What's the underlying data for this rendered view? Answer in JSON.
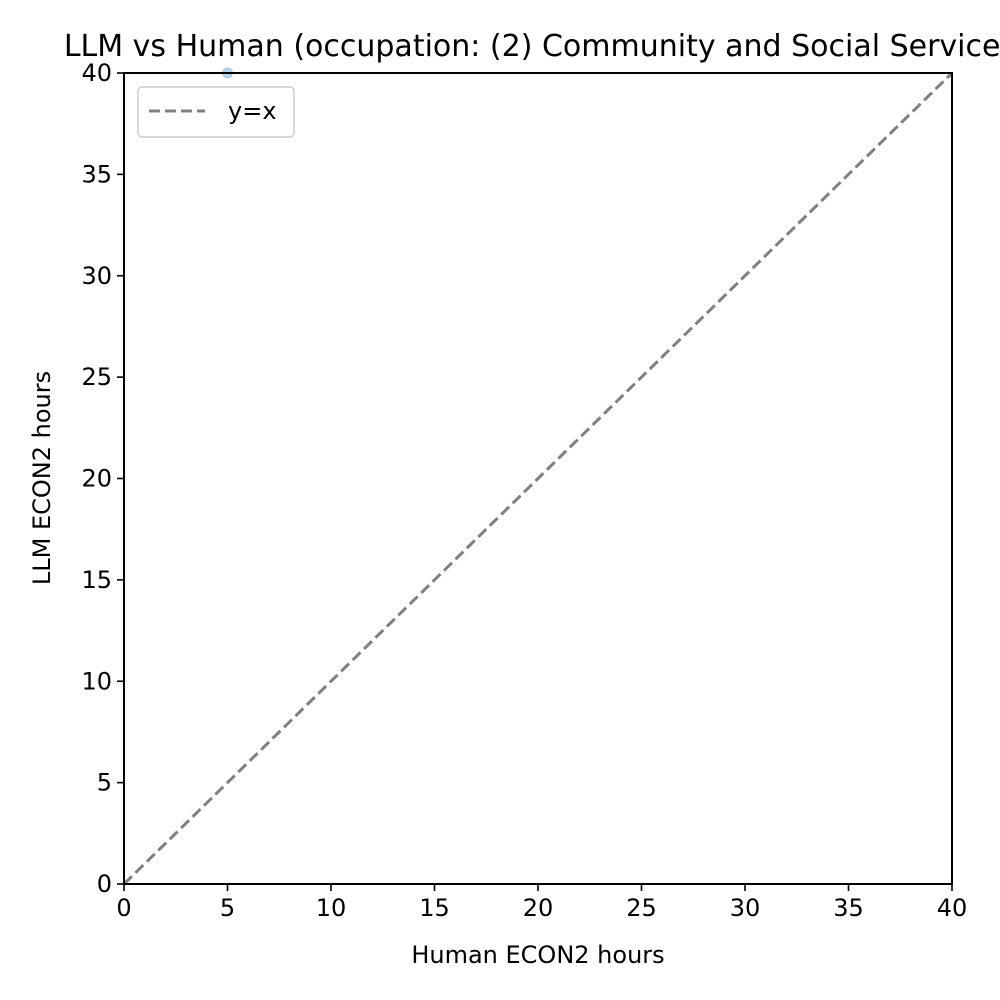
{
  "chart_data": {
    "type": "scatter",
    "title": "LLM vs Human (occupation: (2) Community and Social Service)",
    "xlabel": "Human ECON2 hours",
    "ylabel": "LLM ECON2 hours",
    "xlim": [
      0,
      40
    ],
    "ylim": [
      0,
      40
    ],
    "grid": false,
    "legend_position": "top-left",
    "x_ticks": [
      "0",
      "5",
      "10",
      "15",
      "20",
      "25",
      "30",
      "35",
      "40"
    ],
    "y_ticks": [
      "0",
      "5",
      "10",
      "15",
      "20",
      "25",
      "30",
      "35",
      "40"
    ],
    "series": [
      {
        "type": "scatter",
        "x": [
          5
        ],
        "y": [
          40
        ],
        "color": "#1f77b4"
      },
      {
        "type": "line",
        "name": "y=x",
        "x": [
          0,
          40
        ],
        "y": [
          0,
          40
        ],
        "color": "#808080",
        "dashed": true
      }
    ]
  }
}
